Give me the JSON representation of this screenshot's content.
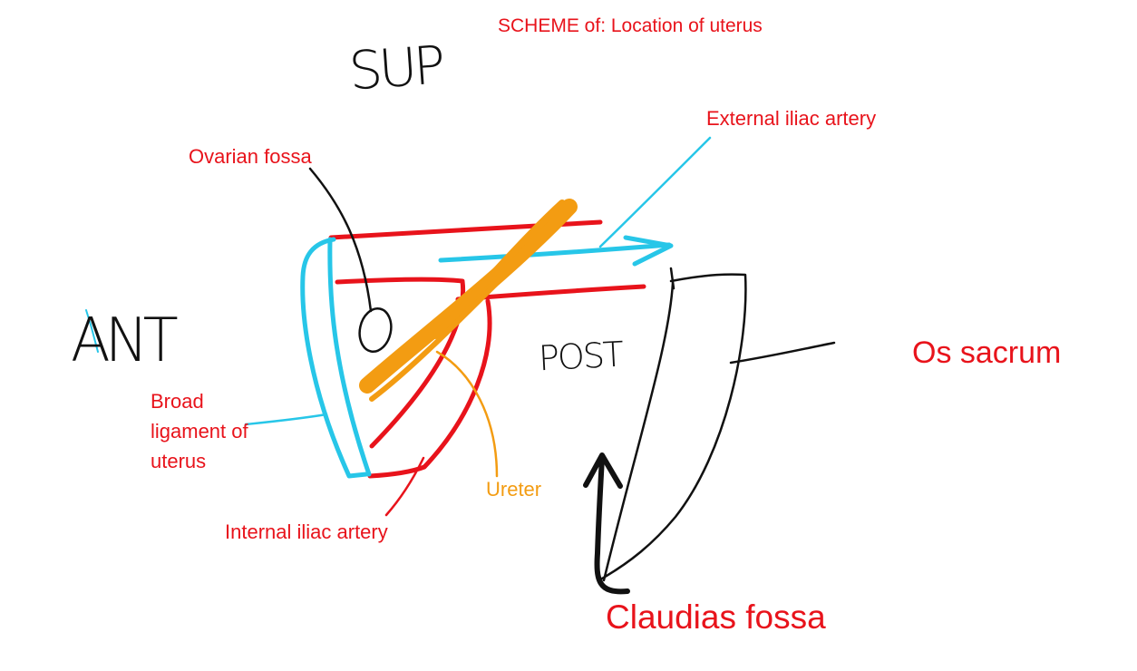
{
  "title": "SCHEME of: Location of uterus",
  "orientation": {
    "superior": "SUP",
    "anterior": "ANT",
    "posterior": "POST"
  },
  "labels": {
    "ovarian_fossa": "Ovarian fossa",
    "external_iliac_artery": "External iliac artery",
    "broad_ligament": "Broad ligament of uterus",
    "internal_iliac_artery": "Internal iliac artery",
    "ureter": "Ureter",
    "os_sacrum": "Os sacrum",
    "claudias_fossa": "Claudias fossa"
  },
  "colors": {
    "label_red": "#e8131b",
    "artery_red": "#e8131b",
    "ligament_blue": "#27c6e8",
    "ureter_orange": "#f39c12",
    "ink_black": "#111111"
  }
}
